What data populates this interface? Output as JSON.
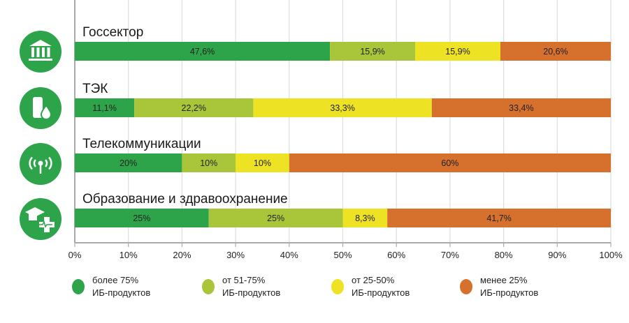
{
  "chart_data": {
    "type": "bar",
    "orientation": "horizontal",
    "stacked": true,
    "categories": [
      "Госсектор",
      "ТЭК",
      "Телекоммуникации",
      "Образование и здравоохранение"
    ],
    "category_icons": [
      "government-building-icon",
      "oil-barrel-drop-icon",
      "radio-antenna-icon",
      "education-health-icon"
    ],
    "series": [
      {
        "name": "более 75% ИБ-продуктов",
        "legend_lines": [
          "более 75%",
          "ИБ-продуктов"
        ],
        "color": "#2ea44a",
        "values": [
          47.6,
          11.1,
          20,
          25
        ],
        "labels": [
          "47,6%",
          "11,1%",
          "20%",
          "25%"
        ]
      },
      {
        "name": "от 51-75% ИБ-продуктов",
        "legend_lines": [
          "от 51-75%",
          "ИБ-продуктов"
        ],
        "color": "#a9c63a",
        "values": [
          15.9,
          22.2,
          10,
          25
        ],
        "labels": [
          "15,9%",
          "22,2%",
          "10%",
          "25%"
        ]
      },
      {
        "name": "от 25-50% ИБ-продуктов",
        "legend_lines": [
          "от 25-50%",
          "ИБ-продуктов"
        ],
        "color": "#ede324",
        "values": [
          15.9,
          33.3,
          10,
          8.3
        ],
        "labels": [
          "15,9%",
          "33,3%",
          "10%",
          "8,3%"
        ]
      },
      {
        "name": "менее 25% ИБ-продуктов",
        "legend_lines": [
          "менее 25%",
          "ИБ-продуктов"
        ],
        "color": "#d5702d",
        "values": [
          20.6,
          33.4,
          60,
          41.7
        ],
        "labels": [
          "20,6%",
          "33,4%",
          "60%",
          "41,7%"
        ]
      }
    ],
    "xlim": [
      0,
      100
    ],
    "xticks": [
      "0%",
      "10%",
      "20%",
      "30%",
      "40%",
      "50%",
      "60%",
      "70%",
      "80%",
      "90%",
      "100%"
    ],
    "grid": true,
    "legend_position": "bottom",
    "icon_circle_color": "#2ea44a"
  }
}
